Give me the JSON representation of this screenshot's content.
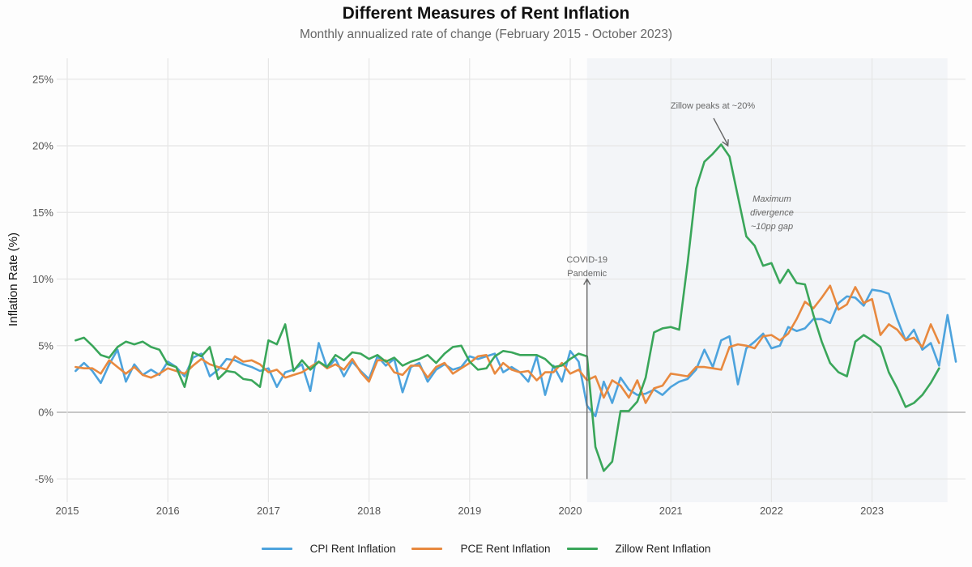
{
  "chart_data": {
    "type": "line",
    "title": "Different Measures of Rent Inflation",
    "subtitle": "Monthly annualized rate of change (February 2015 - October 2023)",
    "xlabel": "",
    "ylabel": "Inflation Rate (%)",
    "ylim": [
      -6.5,
      26.5
    ],
    "yticks": [
      -5,
      0,
      5,
      10,
      15,
      20,
      25
    ],
    "ytick_labels": [
      "-5%",
      "0%",
      "5%",
      "10%",
      "15%",
      "20%",
      "25%"
    ],
    "xlim": [
      2014.95,
      2023.9
    ],
    "xticks": [
      2015,
      2016,
      2017,
      2018,
      2019,
      2020,
      2021,
      2022,
      2023
    ],
    "xtick_labels": [
      "2015",
      "2016",
      "2017",
      "2018",
      "2019",
      "2020",
      "2021",
      "2022",
      "2023"
    ],
    "grid": true,
    "legend_position": "bottom",
    "start": {
      "year": 2015,
      "month": 2
    },
    "shaded_region": {
      "start": {
        "year": 2020,
        "month": 3
      },
      "end": {
        "year": 2023,
        "month": 10
      }
    },
    "series": [
      {
        "name": "CPI Rent Inflation",
        "color": "#4da3dd",
        "values": [
          3.1,
          3.7,
          3.1,
          2.2,
          3.6,
          4.7,
          2.3,
          3.6,
          2.8,
          3.2,
          2.8,
          3.8,
          3.4,
          2.7,
          4.1,
          4.4,
          2.7,
          3.2,
          4.0,
          3.9,
          3.6,
          3.4,
          3.1,
          3.3,
          1.9,
          3.0,
          3.2,
          3.6,
          1.6,
          5.2,
          3.3,
          4.0,
          2.7,
          3.8,
          3.1,
          2.5,
          4.2,
          3.5,
          4.0,
          1.5,
          3.4,
          3.7,
          2.3,
          3.2,
          3.6,
          3.2,
          3.4,
          4.2,
          4.0,
          4.2,
          4.4,
          3.0,
          3.4,
          3.0,
          2.3,
          4.2,
          1.3,
          3.5,
          2.3,
          4.6,
          3.8,
          0.5,
          -0.3,
          2.3,
          0.7,
          2.6,
          1.7,
          1.3,
          1.4,
          1.7,
          1.3,
          1.9,
          2.3,
          2.5,
          3.2,
          4.7,
          3.4,
          5.4,
          5.7,
          2.1,
          4.8,
          5.3,
          5.9,
          4.8,
          5.0,
          6.4,
          6.1,
          6.3,
          7.0,
          7.0,
          6.7,
          8.2,
          8.7,
          8.6,
          8.0,
          9.2,
          9.1,
          8.9,
          7.0,
          5.4,
          6.2,
          4.7,
          5.2,
          3.5,
          7.3,
          3.8
        ]
      },
      {
        "name": "PCE Rent Inflation",
        "color": "#e8893f",
        "values": [
          3.4,
          3.3,
          3.3,
          2.9,
          3.9,
          3.4,
          2.9,
          3.4,
          2.8,
          2.6,
          2.9,
          3.3,
          3.1,
          2.9,
          3.5,
          4.0,
          3.6,
          3.4,
          3.2,
          4.2,
          3.8,
          3.9,
          3.6,
          3.0,
          3.2,
          2.6,
          2.8,
          3.0,
          3.4,
          3.8,
          3.3,
          3.6,
          3.2,
          4.0,
          3.0,
          2.3,
          3.9,
          3.9,
          3.0,
          2.8,
          3.5,
          3.5,
          2.6,
          3.4,
          3.7,
          2.9,
          3.3,
          3.7,
          4.2,
          4.3,
          2.9,
          3.7,
          3.2,
          3.0,
          3.1,
          2.4,
          3.0,
          3.0,
          3.7,
          2.9,
          3.2,
          2.4,
          2.7,
          1.1,
          2.4,
          2.0,
          1.1,
          2.4,
          0.7,
          1.8,
          2.0,
          2.9,
          2.8,
          2.7,
          3.4,
          3.4,
          3.3,
          3.2,
          4.9,
          5.1,
          5.0,
          4.8,
          5.7,
          5.8,
          5.4,
          5.9,
          7.0,
          8.3,
          7.8,
          8.6,
          9.5,
          7.7,
          8.1,
          9.4,
          8.2,
          8.5,
          5.8,
          6.6,
          6.2,
          5.4,
          5.6,
          4.9,
          6.6,
          5.2
        ]
      },
      {
        "name": "Zillow Rent Inflation",
        "color": "#3aa65a",
        "values": [
          5.4,
          5.6,
          5.0,
          4.3,
          4.1,
          4.9,
          5.3,
          5.1,
          5.3,
          4.9,
          4.7,
          3.6,
          3.4,
          1.9,
          4.5,
          4.2,
          4.9,
          2.5,
          3.1,
          3.0,
          2.5,
          2.4,
          1.9,
          5.4,
          5.1,
          6.6,
          3.1,
          3.9,
          3.2,
          3.8,
          3.4,
          4.3,
          3.9,
          4.5,
          4.4,
          4.0,
          4.3,
          3.8,
          4.1,
          3.5,
          3.8,
          4.0,
          4.3,
          3.7,
          4.4,
          4.9,
          5.0,
          3.8,
          3.2,
          3.3,
          4.2,
          4.6,
          4.5,
          4.3,
          4.3,
          4.3,
          4.0,
          3.4,
          3.5,
          4.0,
          4.4,
          4.2,
          -2.6,
          -4.4,
          -3.7,
          0.1,
          0.1,
          0.8,
          2.6,
          6.0,
          6.3,
          6.4,
          6.2,
          11.2,
          16.8,
          18.8,
          19.4,
          20.1,
          19.2,
          16.2,
          13.2,
          12.5,
          11.0,
          11.2,
          9.7,
          10.7,
          9.7,
          9.6,
          7.3,
          5.3,
          3.7,
          3.0,
          2.7,
          5.3,
          5.8,
          5.4,
          4.9,
          3.0,
          1.8,
          0.4,
          0.7,
          1.3,
          2.2,
          3.3
        ]
      }
    ],
    "annotations": [
      {
        "text_lines": [
          "COVID-19",
          "Pandemic"
        ],
        "style": "normal",
        "arrow_target": {
          "year": 2020,
          "month": 3,
          "y": 10
        },
        "arrow_from_y": -5
      },
      {
        "text_lines": [
          "Zillow peaks at ~20%"
        ],
        "style": "normal",
        "arrow_target": {
          "year": 2021,
          "month": 8,
          "y": 20
        }
      },
      {
        "text_lines": [
          "Maximum",
          "divergence",
          "~10pp gap"
        ],
        "style": "italic"
      }
    ]
  }
}
